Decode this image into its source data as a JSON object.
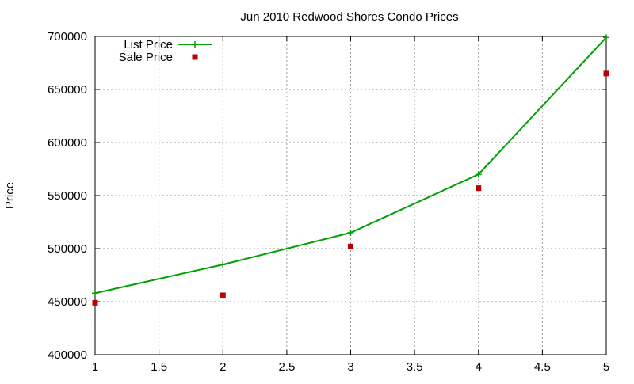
{
  "chart_data": {
    "type": "line",
    "title": "Jun 2010 Redwood Shores Condo Prices",
    "xlabel": "",
    "ylabel": "Price",
    "xlim": [
      1,
      5
    ],
    "ylim": [
      400000,
      700000
    ],
    "x_ticks": [
      "1",
      "1.5",
      "2",
      "2.5",
      "3",
      "3.5",
      "4",
      "4.5",
      "5"
    ],
    "y_ticks": [
      "400000",
      "450000",
      "500000",
      "550000",
      "600000",
      "650000",
      "700000"
    ],
    "grid": true,
    "legend_position": "top-left",
    "series": [
      {
        "name": "List Price",
        "style": "line-with-plus-markers",
        "color": "#00a000",
        "points": [
          [
            1,
            458000
          ],
          [
            2,
            485000
          ],
          [
            3,
            515000
          ],
          [
            4,
            570000
          ],
          [
            5,
            699000
          ]
        ]
      },
      {
        "name": "Sale Price",
        "style": "square-markers",
        "color": "#c00000",
        "points": [
          [
            1,
            449000
          ],
          [
            2,
            456000
          ],
          [
            3,
            502000
          ],
          [
            4,
            557000
          ],
          [
            5,
            665000
          ]
        ]
      }
    ]
  }
}
